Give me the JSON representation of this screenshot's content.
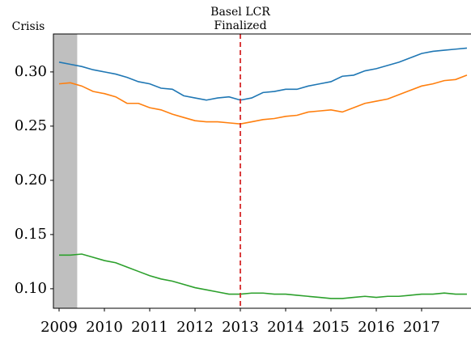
{
  "chart_data": {
    "type": "line",
    "x": [
      2009,
      2009.25,
      2009.5,
      2009.75,
      2010,
      2010.25,
      2010.5,
      2010.75,
      2011,
      2011.25,
      2011.5,
      2011.75,
      2012,
      2012.25,
      2012.5,
      2012.75,
      2013,
      2013.25,
      2013.5,
      2013.75,
      2014,
      2014.25,
      2014.5,
      2014.75,
      2015,
      2015.25,
      2015.5,
      2015.75,
      2016,
      2016.25,
      2016.5,
      2016.75,
      2017,
      2017.25,
      2017.5,
      2017.75,
      2018
    ],
    "series": [
      {
        "color": "#1f77b4",
        "values": [
          0.309,
          0.307,
          0.305,
          0.302,
          0.3,
          0.298,
          0.295,
          0.291,
          0.289,
          0.285,
          0.284,
          0.278,
          0.276,
          0.274,
          0.276,
          0.277,
          0.274,
          0.276,
          0.281,
          0.282,
          0.284,
          0.284,
          0.287,
          0.289,
          0.291,
          0.296,
          0.297,
          0.301,
          0.303,
          0.306,
          0.309,
          0.313,
          0.317,
          0.319,
          0.32,
          0.321,
          0.322
        ]
      },
      {
        "color": "#ff7f0e",
        "values": [
          0.289,
          0.29,
          0.287,
          0.282,
          0.28,
          0.277,
          0.271,
          0.271,
          0.267,
          0.265,
          0.261,
          0.258,
          0.255,
          0.254,
          0.254,
          0.253,
          0.252,
          0.254,
          0.256,
          0.257,
          0.259,
          0.26,
          0.263,
          0.264,
          0.265,
          0.263,
          0.267,
          0.271,
          0.273,
          0.275,
          0.279,
          0.283,
          0.287,
          0.289,
          0.292,
          0.293,
          0.297
        ]
      },
      {
        "color": "#2ca02c",
        "values": [
          0.131,
          0.131,
          0.132,
          0.129,
          0.126,
          0.124,
          0.12,
          0.116,
          0.112,
          0.109,
          0.107,
          0.104,
          0.101,
          0.099,
          0.097,
          0.095,
          0.095,
          0.096,
          0.096,
          0.095,
          0.095,
          0.094,
          0.093,
          0.092,
          0.091,
          0.091,
          0.092,
          0.093,
          0.092,
          0.093,
          0.093,
          0.094,
          0.095,
          0.095,
          0.096,
          0.095,
          0.095
        ]
      }
    ],
    "xlim": [
      2008.875,
      2018.09
    ],
    "xticks": [
      2009,
      2010,
      2011,
      2012,
      2013,
      2014,
      2015,
      2016,
      2017
    ],
    "ylim": [
      0.082,
      0.335
    ],
    "yticks": [
      {
        "value": 0.1,
        "label": "0.10"
      },
      0.15,
      {
        "value": 0.2,
        "label": "0.20"
      },
      0.25,
      {
        "value": 0.3,
        "label": "0.30"
      }
    ],
    "shade": {
      "range": [
        2008.875,
        2009.4
      ],
      "label": "Crisis",
      "color": "#bfbfbf"
    },
    "vline": {
      "x": 2013,
      "label": [
        "Basel LCR",
        "Finalized"
      ],
      "color": "#d62728"
    }
  }
}
